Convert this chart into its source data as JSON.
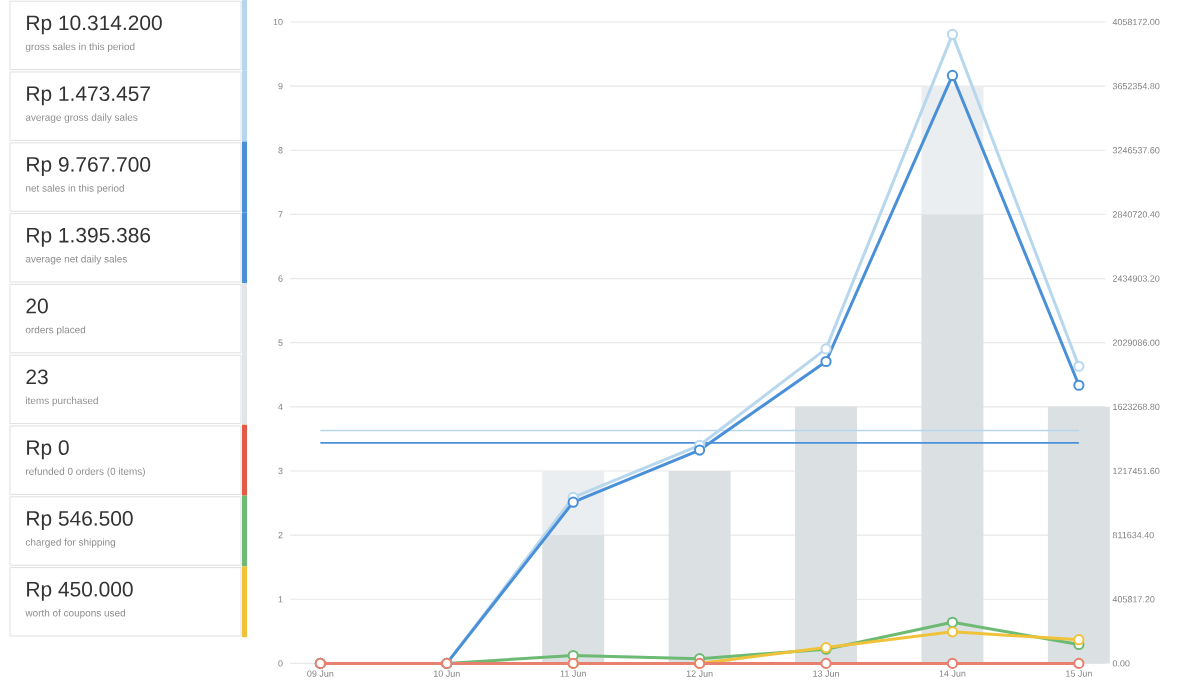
{
  "chart_data": [
    {
      "type": "other",
      "annotations": [
        "Rp 10.314.200",
        "gross sales in this period",
        "Rp 1.473.457",
        "average gross daily sales",
        "Rp 9.767.700",
        "net sales in this period",
        "Rp 1.395.386",
        "average net daily sales",
        "20",
        "orders placed",
        "23",
        "items purchased",
        "Rp 0",
        "refunded 0 orders (0 items)",
        "Rp 546.500",
        "charged for shipping",
        "Rp 450.000",
        "worth of coupons used"
      ],
      "colors": [
        "#b5d6ee",
        "#b5d6ee",
        "#4a90d9",
        "#4a90d9",
        "#e2e5e7",
        "#e2e5e7",
        "#e15b46",
        "#6cba73",
        "#f0c23a"
      ]
    },
    {
      "type": "bar",
      "categories": [
        "09 Jun",
        "10 Jun",
        "11 Jun",
        "12 Jun",
        "13 Jun",
        "14 Jun",
        "15 Jun"
      ],
      "stacked": true,
      "series": [
        {
          "type": "bar",
          "color": "#dbe0e2",
          "values": [
            0,
            0,
            2,
            3,
            4,
            7,
            4
          ]
        },
        {
          "type": "bar",
          "color": "#ebeef0",
          "values": [
            0,
            0,
            1,
            0,
            0,
            2,
            0
          ]
        },
        {
          "type": "line",
          "axis": "y2",
          "color": "#b7d7ee",
          "values": [
            0,
            0,
            1050000,
            1380000,
            1990000,
            3980000,
            1880000
          ]
        },
        {
          "type": "line",
          "axis": "y2",
          "color": "#4a90d9",
          "values": [
            0,
            0,
            1020000,
            1350000,
            1910000,
            3720000,
            1760000
          ]
        },
        {
          "type": "line",
          "axis": "y2",
          "color": "#6cba73",
          "values": [
            0,
            0,
            50000,
            30000,
            90000,
            260000,
            120000
          ]
        },
        {
          "type": "line",
          "axis": "y2",
          "color": "#f0c23a",
          "values": [
            null,
            null,
            0,
            0,
            100000,
            200000,
            150000
          ]
        },
        {
          "type": "line",
          "axis": "y2",
          "color": "#e8806f",
          "values": [
            0,
            0,
            0,
            0,
            0,
            0,
            0
          ]
        }
      ],
      "ylim": [
        0,
        10
      ],
      "yticks": [
        0,
        1,
        2,
        3,
        4,
        5,
        6,
        7,
        8,
        9,
        10
      ],
      "y2lim": [
        0,
        4058172
      ],
      "y2ticks": [
        {
          "value": 0,
          "label": "0.00"
        },
        {
          "value": 405817.2,
          "label": "405817.20"
        },
        {
          "value": 811634.4,
          "label": "811634.40"
        },
        {
          "value": 1217451.6,
          "label": "1217451.60"
        },
        {
          "value": 1623268.8,
          "label": "1623268.80"
        },
        {
          "value": 2029086,
          "label": "2029086.00"
        },
        {
          "value": 2434903.2,
          "label": "2434903.20"
        },
        {
          "value": 2840720.4,
          "label": "2840720.40"
        },
        {
          "value": 3246537.6,
          "label": "3246537.60"
        },
        {
          "value": 3652354.8,
          "label": "3652354.80"
        },
        {
          "value": 4058172,
          "label": "4058172.00"
        }
      ],
      "ref_lines": [
        {
          "axis": "y2",
          "value": 1473457,
          "color": "#b7d7ee"
        },
        {
          "axis": "y2",
          "value": 1395386,
          "color": "#4a90d9"
        }
      ],
      "grid": "y",
      "marker": "circle"
    }
  ]
}
